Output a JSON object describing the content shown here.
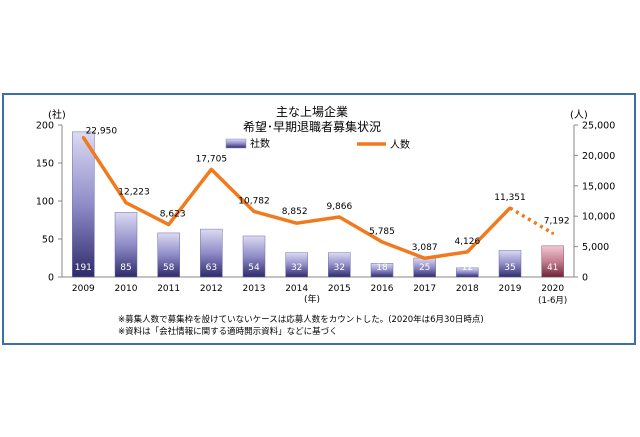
{
  "chart_data": {
    "type": "bar",
    "title": "主な上場企業",
    "subtitle": "希望･早期退職者募集状況",
    "categories": [
      "2009",
      "2010",
      "2011",
      "2012",
      "2013",
      "2014",
      "2015",
      "2016",
      "2017",
      "2018",
      "2019",
      "2020"
    ],
    "category_sublabels": [
      "",
      "",
      "",
      "",
      "",
      "",
      "",
      "",
      "",
      "",
      "",
      "(1-6月)"
    ],
    "xlabel": "(年)",
    "y_left": {
      "unit": "(社)",
      "ylim": [
        0,
        200
      ],
      "ticks": [
        "0",
        "50",
        "100",
        "150",
        "200"
      ]
    },
    "y_right": {
      "unit": "(人)",
      "ylim": [
        0,
        25000
      ],
      "ticks": [
        "0",
        "5,000",
        "10,000",
        "15,000",
        "20,000",
        "25,000"
      ]
    },
    "series": [
      {
        "name": "社数",
        "kind": "bar",
        "axis": "left",
        "values": [
          191,
          85,
          58,
          63,
          54,
          32,
          32,
          18,
          25,
          12,
          35,
          41
        ],
        "labels": [
          "191",
          "85",
          "58",
          "63",
          "54",
          "32",
          "32",
          "18",
          "25",
          "12",
          "35",
          "41"
        ]
      },
      {
        "name": "人数",
        "kind": "line",
        "axis": "right",
        "values": [
          22950,
          12223,
          8623,
          17705,
          10782,
          8852,
          9866,
          5785,
          3087,
          4126,
          11351,
          7192
        ],
        "labels": [
          "22,950",
          "12,223",
          "8,623",
          "17,705",
          "10,782",
          "8,852",
          "9,866",
          "5,785",
          "3,087",
          "4,126",
          "11,351",
          "7,192"
        ]
      }
    ],
    "legend": "top",
    "grid": false,
    "highlight_last": true
  },
  "notes": [
    "※募集人数で募集枠を設けていないケースは応募人数をカウントした。(2020年は6月30日時点)",
    "※資料は「会社情報に関する適時開示資料」などに基づく"
  ],
  "colors": {
    "bar": "#8f8cc8",
    "bar_last": "#b76b7e",
    "line": "#f07a1d",
    "frame": "#3b6fa8"
  }
}
